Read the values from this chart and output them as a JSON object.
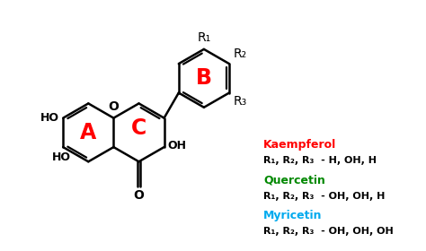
{
  "background_color": "#ffffff",
  "ring_label_color": "#ff0000",
  "bond_color": "#000000",
  "kaempferol_color": "#ff0000",
  "quercetin_color": "#008800",
  "myricetin_color": "#00aaee",
  "label_color": "#000000",
  "ring_A_label": "A",
  "ring_B_label": "B",
  "ring_C_label": "C",
  "kaempferol_name": "Kaempferol",
  "kaempferol_sub": "R₁, R₂, R₃  - H, OH, H",
  "quercetin_name": "Quercetin",
  "quercetin_sub": "R₁, R₂, R₃  - OH, OH, H",
  "myricetin_name": "Myricetin",
  "myricetin_sub": "R₁, R₂, R₃  - OH, OH, OH"
}
